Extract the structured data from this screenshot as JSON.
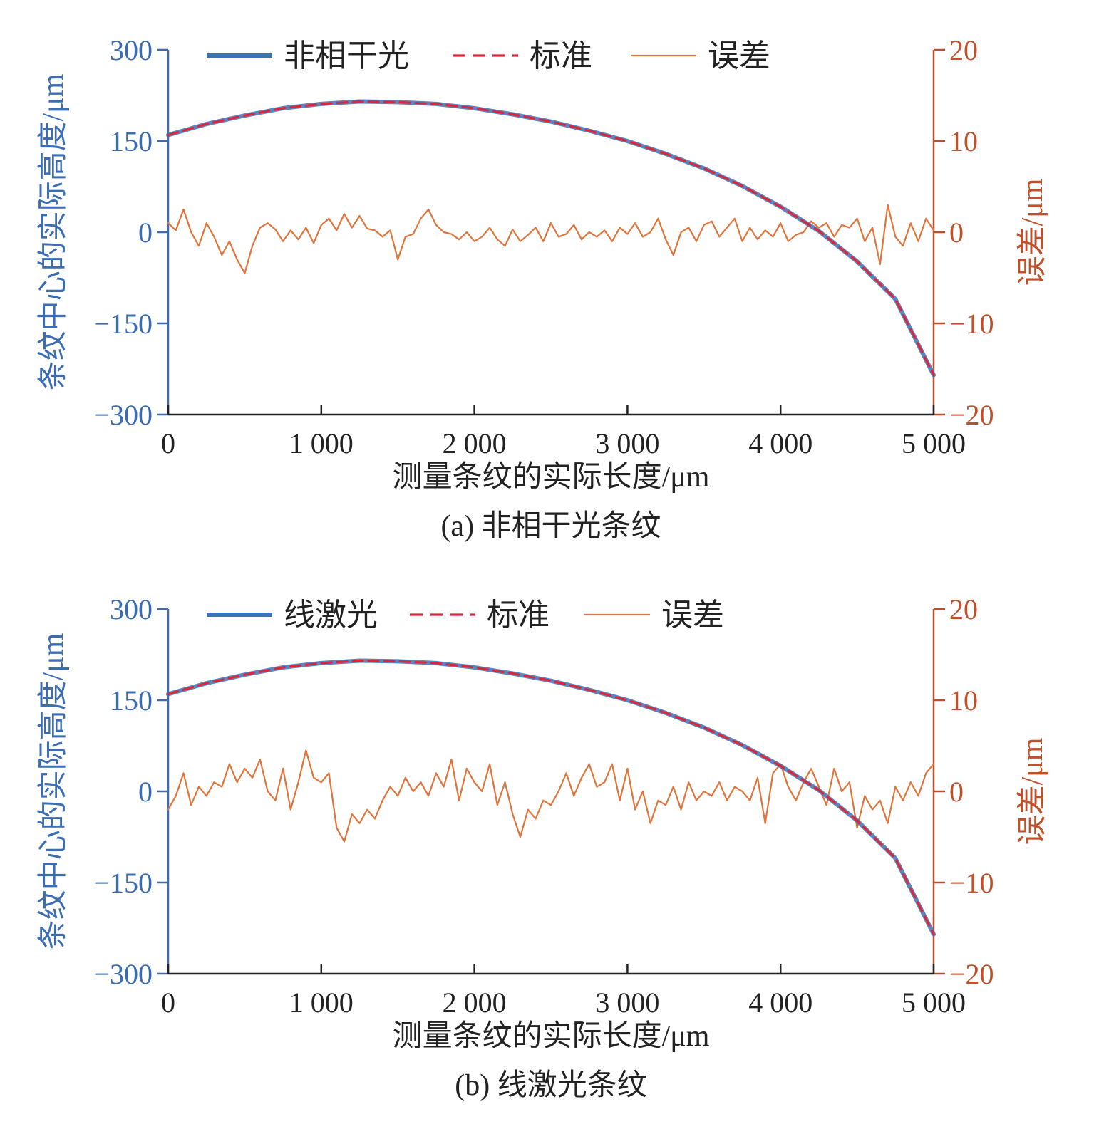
{
  "colors": {
    "left_axis": "#3b6db5",
    "right_axis": "#c0502a",
    "measured": "#3b72b8",
    "standard": "#d9283a",
    "error": "#e0743a",
    "text": "#222222"
  },
  "chart_data": [
    {
      "type": "line",
      "caption": "(a) 非相干光条纹",
      "xlabel": "测量条纹的实际长度/μm",
      "ylabel_left": "条纹中心的实际高度/μm",
      "ylabel_right": "误差/μm",
      "xlim": [
        0,
        5000
      ],
      "ylim_left": [
        -300,
        300
      ],
      "ylim_right": [
        -20,
        20
      ],
      "x_ticks": [
        0,
        1000,
        2000,
        3000,
        4000,
        5000
      ],
      "x_tick_labels": [
        "0",
        "1 000",
        "2 000",
        "3 000",
        "4 000",
        "5 000"
      ],
      "y_ticks_left": [
        300,
        150,
        0,
        -150,
        -300
      ],
      "y_tick_labels_left": [
        "300",
        "150",
        "0",
        "−150",
        "−300"
      ],
      "y_ticks_right": [
        20,
        10,
        0,
        -10,
        -20
      ],
      "y_tick_labels_right": [
        "20",
        "10",
        "0",
        "−10",
        "−20"
      ],
      "legend": [
        "非相干光",
        "标准",
        "误差"
      ],
      "legend_position": "top",
      "grid": false,
      "series": [
        {
          "name": "非相干光",
          "axis": "left",
          "style": "solid-thick",
          "x": [
            0,
            250,
            500,
            750,
            1000,
            1250,
            1500,
            1750,
            2000,
            2250,
            2500,
            2750,
            3000,
            3250,
            3500,
            3750,
            4000,
            4250,
            4500,
            4750,
            5000
          ],
          "y": [
            160,
            178,
            192,
            204,
            211,
            215,
            214,
            211,
            204,
            194,
            182,
            167,
            150,
            129,
            105,
            76,
            42,
            2,
            -48,
            -110,
            -235
          ]
        },
        {
          "name": "标准",
          "axis": "left",
          "style": "dashed",
          "x": [
            0,
            250,
            500,
            750,
            1000,
            1250,
            1500,
            1750,
            2000,
            2250,
            2500,
            2750,
            3000,
            3250,
            3500,
            3750,
            4000,
            4250,
            4500,
            4750,
            5000
          ],
          "y": [
            160,
            178,
            192,
            204,
            211,
            215,
            214,
            211,
            204,
            194,
            182,
            167,
            150,
            129,
            105,
            76,
            42,
            2,
            -48,
            -110,
            -235
          ]
        },
        {
          "name": "误差",
          "axis": "right",
          "style": "solid-thin",
          "x": [
            0,
            50,
            100,
            150,
            200,
            250,
            300,
            350,
            400,
            450,
            500,
            550,
            600,
            650,
            700,
            750,
            800,
            850,
            900,
            950,
            1000,
            1050,
            1100,
            1150,
            1200,
            1250,
            1300,
            1350,
            1400,
            1450,
            1500,
            1550,
            1600,
            1650,
            1700,
            1750,
            1800,
            1850,
            1900,
            1950,
            2000,
            2050,
            2100,
            2150,
            2200,
            2250,
            2300,
            2350,
            2400,
            2450,
            2500,
            2550,
            2600,
            2650,
            2700,
            2750,
            2800,
            2850,
            2900,
            2950,
            3000,
            3050,
            3100,
            3150,
            3200,
            3250,
            3300,
            3350,
            3400,
            3450,
            3500,
            3550,
            3600,
            3650,
            3700,
            3750,
            3800,
            3850,
            3900,
            3950,
            4000,
            4050,
            4100,
            4150,
            4200,
            4250,
            4300,
            4350,
            4400,
            4450,
            4500,
            4550,
            4600,
            4650,
            4700,
            4750,
            4800,
            4850,
            4900,
            4950,
            5000
          ],
          "y": [
            1.0,
            0.2,
            2.5,
            0.0,
            -1.5,
            1.0,
            -0.5,
            -2.5,
            -1.0,
            -3.0,
            -4.5,
            -1.5,
            0.5,
            1.0,
            0.3,
            -1.0,
            0.2,
            -0.8,
            0.5,
            -1.2,
            0.8,
            1.5,
            0.2,
            2.0,
            0.5,
            1.8,
            0.4,
            0.2,
            -0.5,
            0.2,
            -3.0,
            -0.5,
            -0.2,
            1.5,
            2.5,
            0.8,
            0.0,
            -0.2,
            -0.8,
            0.0,
            -1.0,
            -0.5,
            0.5,
            -0.8,
            -1.5,
            0.3,
            -1.0,
            -0.3,
            0.5,
            -1.0,
            1.0,
            -0.5,
            -0.2,
            0.8,
            -0.8,
            0.0,
            -0.5,
            0.2,
            -1.0,
            0.5,
            -0.2,
            1.0,
            -0.5,
            0.0,
            1.5,
            -0.8,
            -2.5,
            0.0,
            0.5,
            -1.0,
            0.8,
            1.2,
            -0.5,
            0.5,
            1.5,
            -1.0,
            0.5,
            -0.8,
            0.2,
            -0.5,
            1.0,
            -1.0,
            -0.3,
            0.0,
            1.2,
            0.5,
            1.0,
            -0.5,
            0.8,
            0.5,
            1.5,
            -1.0,
            0.5,
            -3.5,
            3.0,
            -0.5,
            -1.5,
            1.0,
            -1.0,
            1.5,
            0.2
          ]
        }
      ]
    },
    {
      "type": "line",
      "caption": "(b) 线激光条纹",
      "xlabel": "测量条纹的实际长度/μm",
      "ylabel_left": "条纹中心的实际高度/μm",
      "ylabel_right": "误差/μm",
      "xlim": [
        0,
        5000
      ],
      "ylim_left": [
        -300,
        300
      ],
      "ylim_right": [
        -20,
        20
      ],
      "x_ticks": [
        0,
        1000,
        2000,
        3000,
        4000,
        5000
      ],
      "x_tick_labels": [
        "0",
        "1 000",
        "2 000",
        "3 000",
        "4 000",
        "5 000"
      ],
      "y_ticks_left": [
        300,
        150,
        0,
        -150,
        -300
      ],
      "y_tick_labels_left": [
        "300",
        "150",
        "0",
        "−150",
        "−300"
      ],
      "y_ticks_right": [
        20,
        10,
        0,
        -10,
        -20
      ],
      "y_tick_labels_right": [
        "20",
        "10",
        "0",
        "−10",
        "−20"
      ],
      "legend": [
        "线激光",
        "标准",
        "误差"
      ],
      "legend_position": "top",
      "grid": false,
      "series": [
        {
          "name": "线激光",
          "axis": "left",
          "style": "solid-thick",
          "x": [
            0,
            250,
            500,
            750,
            1000,
            1250,
            1500,
            1750,
            2000,
            2250,
            2500,
            2750,
            3000,
            3250,
            3500,
            3750,
            4000,
            4250,
            4500,
            4750,
            5000
          ],
          "y": [
            160,
            178,
            192,
            204,
            211,
            215,
            214,
            211,
            204,
            194,
            182,
            167,
            150,
            129,
            105,
            76,
            42,
            2,
            -48,
            -110,
            -235
          ]
        },
        {
          "name": "标准",
          "axis": "left",
          "style": "dashed",
          "x": [
            0,
            250,
            500,
            750,
            1000,
            1250,
            1500,
            1750,
            2000,
            2250,
            2500,
            2750,
            3000,
            3250,
            3500,
            3750,
            4000,
            4250,
            4500,
            4750,
            5000
          ],
          "y": [
            160,
            178,
            192,
            204,
            211,
            215,
            214,
            211,
            204,
            194,
            182,
            167,
            150,
            129,
            105,
            76,
            42,
            2,
            -48,
            -110,
            -235
          ]
        },
        {
          "name": "误差",
          "axis": "right",
          "style": "solid-thin",
          "x": [
            0,
            50,
            100,
            150,
            200,
            250,
            300,
            350,
            400,
            450,
            500,
            550,
            600,
            650,
            700,
            750,
            800,
            850,
            900,
            950,
            1000,
            1050,
            1100,
            1150,
            1200,
            1250,
            1300,
            1350,
            1400,
            1450,
            1500,
            1550,
            1600,
            1650,
            1700,
            1750,
            1800,
            1850,
            1900,
            1950,
            2000,
            2050,
            2100,
            2150,
            2200,
            2250,
            2300,
            2350,
            2400,
            2450,
            2500,
            2550,
            2600,
            2650,
            2700,
            2750,
            2800,
            2850,
            2900,
            2950,
            3000,
            3050,
            3100,
            3150,
            3200,
            3250,
            3300,
            3350,
            3400,
            3450,
            3500,
            3550,
            3600,
            3650,
            3700,
            3750,
            3800,
            3850,
            3900,
            3950,
            4000,
            4050,
            4100,
            4150,
            4200,
            4250,
            4300,
            4350,
            4400,
            4450,
            4500,
            4550,
            4600,
            4650,
            4700,
            4750,
            4800,
            4850,
            4900,
            4950,
            5000
          ],
          "y": [
            -2.0,
            -0.5,
            2.0,
            -1.5,
            0.5,
            -0.5,
            1.0,
            0.5,
            3.0,
            1.0,
            2.5,
            1.5,
            3.5,
            0.0,
            -1.0,
            2.5,
            -2.0,
            1.0,
            4.5,
            1.5,
            1.0,
            2.0,
            -4.0,
            -5.5,
            -2.5,
            -3.5,
            -2.0,
            -3.0,
            -1.0,
            0.5,
            -0.5,
            1.5,
            0.0,
            1.0,
            -0.5,
            2.0,
            0.5,
            3.5,
            -1.0,
            2.5,
            1.0,
            0.0,
            3.0,
            -1.5,
            1.0,
            -2.5,
            -5.0,
            -2.0,
            -3.0,
            -1.0,
            -1.5,
            0.0,
            2.0,
            -0.5,
            1.5,
            3.0,
            0.5,
            1.0,
            3.0,
            -1.0,
            2.5,
            -2.0,
            0.0,
            -3.5,
            -1.0,
            -1.5,
            0.5,
            -2.0,
            1.0,
            -1.0,
            0.0,
            -0.5,
            1.0,
            -1.0,
            0.5,
            0.0,
            -1.0,
            1.5,
            -3.5,
            2.0,
            3.0,
            0.5,
            -1.0,
            1.0,
            2.5,
            0.5,
            -1.5,
            2.5,
            0.0,
            1.0,
            -4.0,
            -0.5,
            -2.0,
            -1.0,
            -3.5,
            0.5,
            -1.0,
            1.0,
            -0.5,
            2.0,
            3.0
          ]
        }
      ]
    }
  ]
}
